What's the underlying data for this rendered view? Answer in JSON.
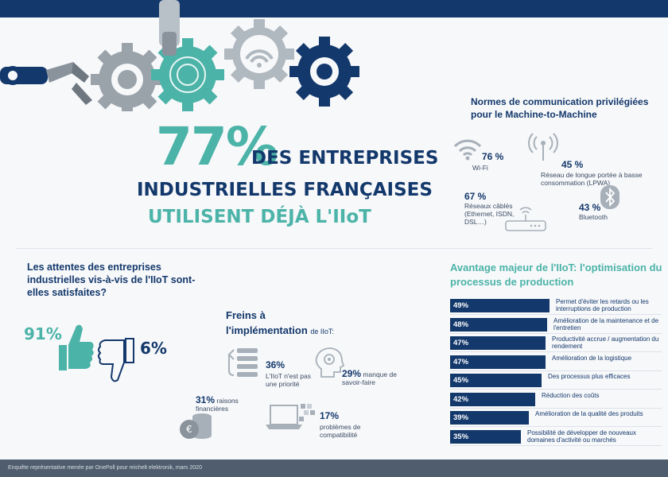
{
  "headline": {
    "percent": "77%",
    "line1": "DES ENTREPRISES",
    "line2": "INDUSTRIELLES FRANÇAISES",
    "line3": "UTILISENT DÉJÀ L'IIoT"
  },
  "m2m": {
    "title": "Normes de communication privilégiées pour le Machine-to-Machine",
    "items": [
      {
        "pct": "76 %",
        "label": "Wi-Fi",
        "icon": "wifi-icon"
      },
      {
        "pct": "45 %",
        "label": "Réseau de longue portée à basse consommation (LPWA)",
        "icon": "antenna-icon"
      },
      {
        "pct": "67 %",
        "label": "Réseaux câblés (Ethernet, ISDN, DSL…)",
        "icon": "router-icon"
      },
      {
        "pct": "43 %",
        "label": "Bluetooth",
        "icon": "bluetooth-icon"
      }
    ]
  },
  "satisfaction": {
    "title": "Les attentes des entreprises industrielles vis-à-vis de l'IIoT sont-elles satisfaites?",
    "yes_pct": "91%",
    "no_pct": "6%",
    "colors": {
      "yes": "#4bb3a8",
      "no": "#13386b"
    }
  },
  "freins": {
    "title_line1": "Freins à",
    "title_line2": "l'implémentation",
    "title_suffix": "de IIoT:",
    "items": [
      {
        "pct": "36%",
        "label": "L'IIoT n'est pas une priorité",
        "icon": "list-icon"
      },
      {
        "pct": "29%",
        "label": "manque de savoir-faire",
        "icon": "head-gear-icon"
      },
      {
        "pct": "31%",
        "label": "raisons financières",
        "icon": "coins-icon"
      },
      {
        "pct": "17%",
        "label": "problèmes de compatibilité",
        "icon": "laptop-icon"
      }
    ]
  },
  "chart_data": {
    "type": "bar",
    "title": "Avantage majeur de l'IIoT: l'optimisation du processus de production",
    "orientation": "horizontal",
    "categories": [
      "Permet d'éviter les retards ou les interruptions de production",
      "Amélioration de la maintenance et de l'entretien",
      "Productivité accrue / augmentation du rendement",
      "Amélioration de la logistique",
      "Des processus plus efficaces",
      "Réduction des coûts",
      "Amélioration de la qualité des produits",
      "Possibilité de développer de nouveaux domaines d'activité ou marchés"
    ],
    "values": [
      49,
      48,
      47,
      47,
      45,
      42,
      39,
      35
    ],
    "value_labels": [
      "49%",
      "48%",
      "47%",
      "47%",
      "45%",
      "42%",
      "39%",
      "35%"
    ],
    "unit": "%",
    "bar_color": "#13386b"
  },
  "footer": {
    "text": "Enquête représentative menée par OnePoll pour reichelt elektronik, mars 2020"
  },
  "colors": {
    "navy": "#13386b",
    "teal": "#4bb3a8",
    "grey": "#8a939c"
  }
}
